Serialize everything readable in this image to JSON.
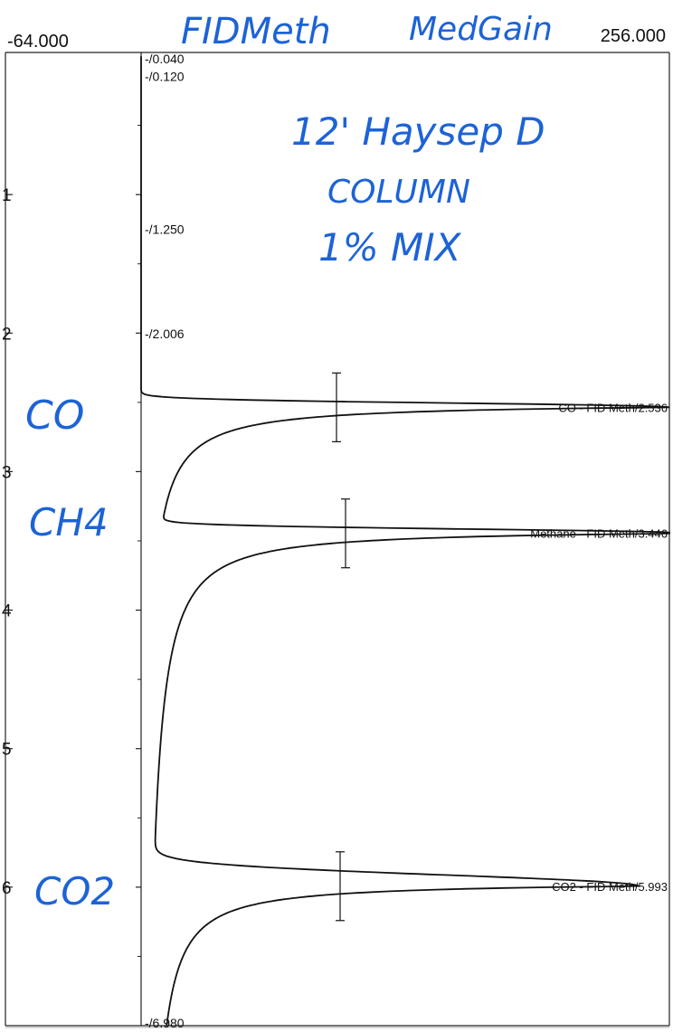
{
  "chart_data": {
    "type": "line",
    "orientation": "vertical-time-axis",
    "x_range_labels": [
      "-64.000",
      "256.000"
    ],
    "x_range": [
      -64,
      256
    ],
    "ylim": [
      0,
      7
    ],
    "y_ticks": [
      1,
      2,
      3,
      4,
      5,
      6
    ],
    "y_tick_labels": [
      "1",
      "2",
      "3",
      "4",
      "5",
      "6"
    ],
    "time_markers": [
      {
        "time": 0.04,
        "label": "-/0.040"
      },
      {
        "time": 0.12,
        "label": "-/0.120"
      },
      {
        "time": 1.25,
        "label": "-/1.250"
      },
      {
        "time": 2.006,
        "label": "-/2.006"
      },
      {
        "time": 6.98,
        "label": "-/6.980"
      }
    ],
    "peaks": [
      {
        "compound": "CO",
        "retention_time": 2.536,
        "label": "CO - FID Meth/2.536",
        "apex_signal": 256
      },
      {
        "compound": "Methane",
        "retention_time": 3.446,
        "label": "Methane - FID Meth/3.446",
        "apex_signal": 256
      },
      {
        "compound": "CO2",
        "retention_time": 5.993,
        "label": "CO2 - FID Meth/5.993",
        "apex_signal": 235
      }
    ],
    "line_color": "#111111"
  },
  "handwritten": {
    "title_left": "FIDMeth",
    "title_right": "MedGain",
    "note_line1": "12' Haysep D",
    "note_line2": "COLUMN",
    "note_line3": "1% MIX",
    "peak_labels": [
      "CO",
      "CH4",
      "CO2"
    ],
    "ink_color": "#1d63d6"
  }
}
